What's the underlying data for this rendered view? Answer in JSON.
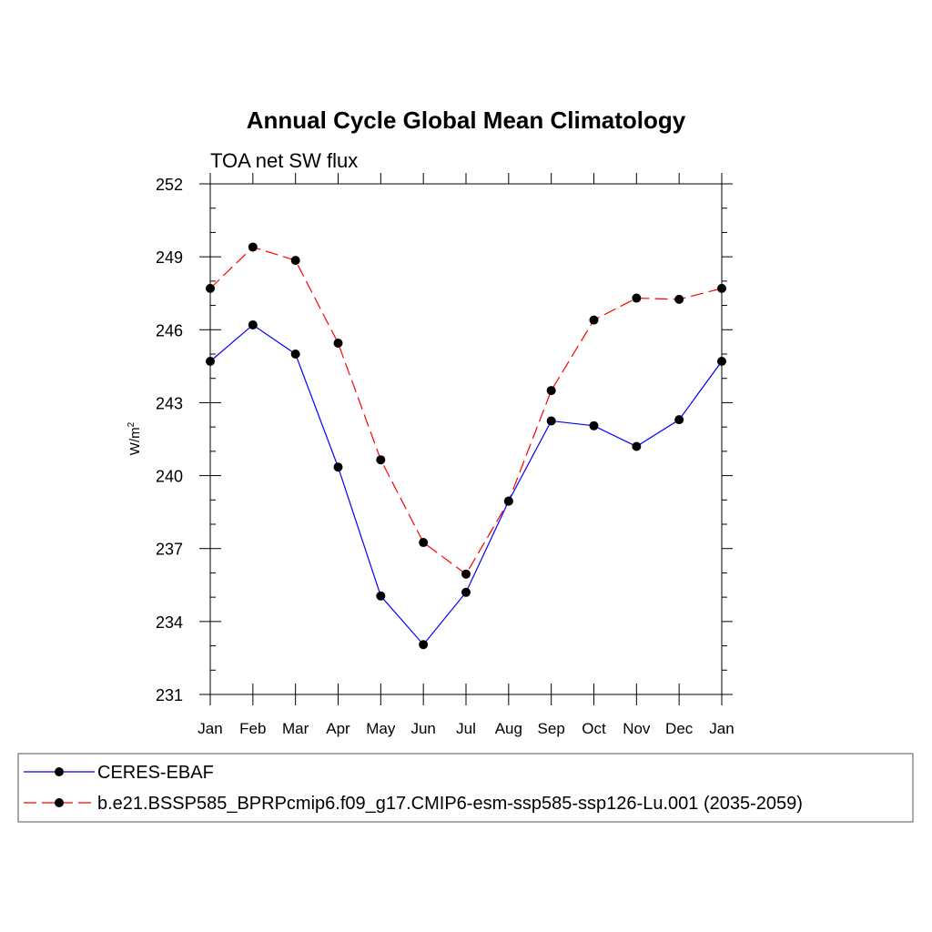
{
  "chart_data": {
    "type": "line",
    "title": "Annual Cycle Global Mean Climatology",
    "subtitle": "TOA net SW flux",
    "ylabel": "W/m",
    "ylabel_superscript": "2",
    "xlabel": "",
    "categories": [
      "Jan",
      "Feb",
      "Mar",
      "Apr",
      "May",
      "Jun",
      "Jul",
      "Aug",
      "Sep",
      "Oct",
      "Nov",
      "Dec",
      "Jan"
    ],
    "ylim": [
      231,
      252
    ],
    "yticks": [
      231,
      234,
      237,
      240,
      243,
      246,
      249,
      252
    ],
    "grid": false,
    "legend_placement": "bottom",
    "series": [
      {
        "name": "CERES-EBAF",
        "color": "#0000ff",
        "dash": "solid",
        "marker": "circle",
        "values": [
          244.7,
          246.2,
          245.0,
          240.35,
          235.05,
          233.05,
          235.2,
          238.95,
          242.25,
          242.05,
          241.2,
          242.3,
          244.7
        ]
      },
      {
        "name": "b.e21.BSSP585_BPRPcmip6.f09_g17.CMIP6-esm-ssp585-ssp126-Lu.001 (2035-2059)",
        "color": "#ff0000",
        "dash": "dashed",
        "marker": "circle",
        "values": [
          247.7,
          249.4,
          248.85,
          245.45,
          240.65,
          237.25,
          235.95,
          238.95,
          243.5,
          246.4,
          247.3,
          247.25,
          247.7
        ]
      }
    ]
  }
}
